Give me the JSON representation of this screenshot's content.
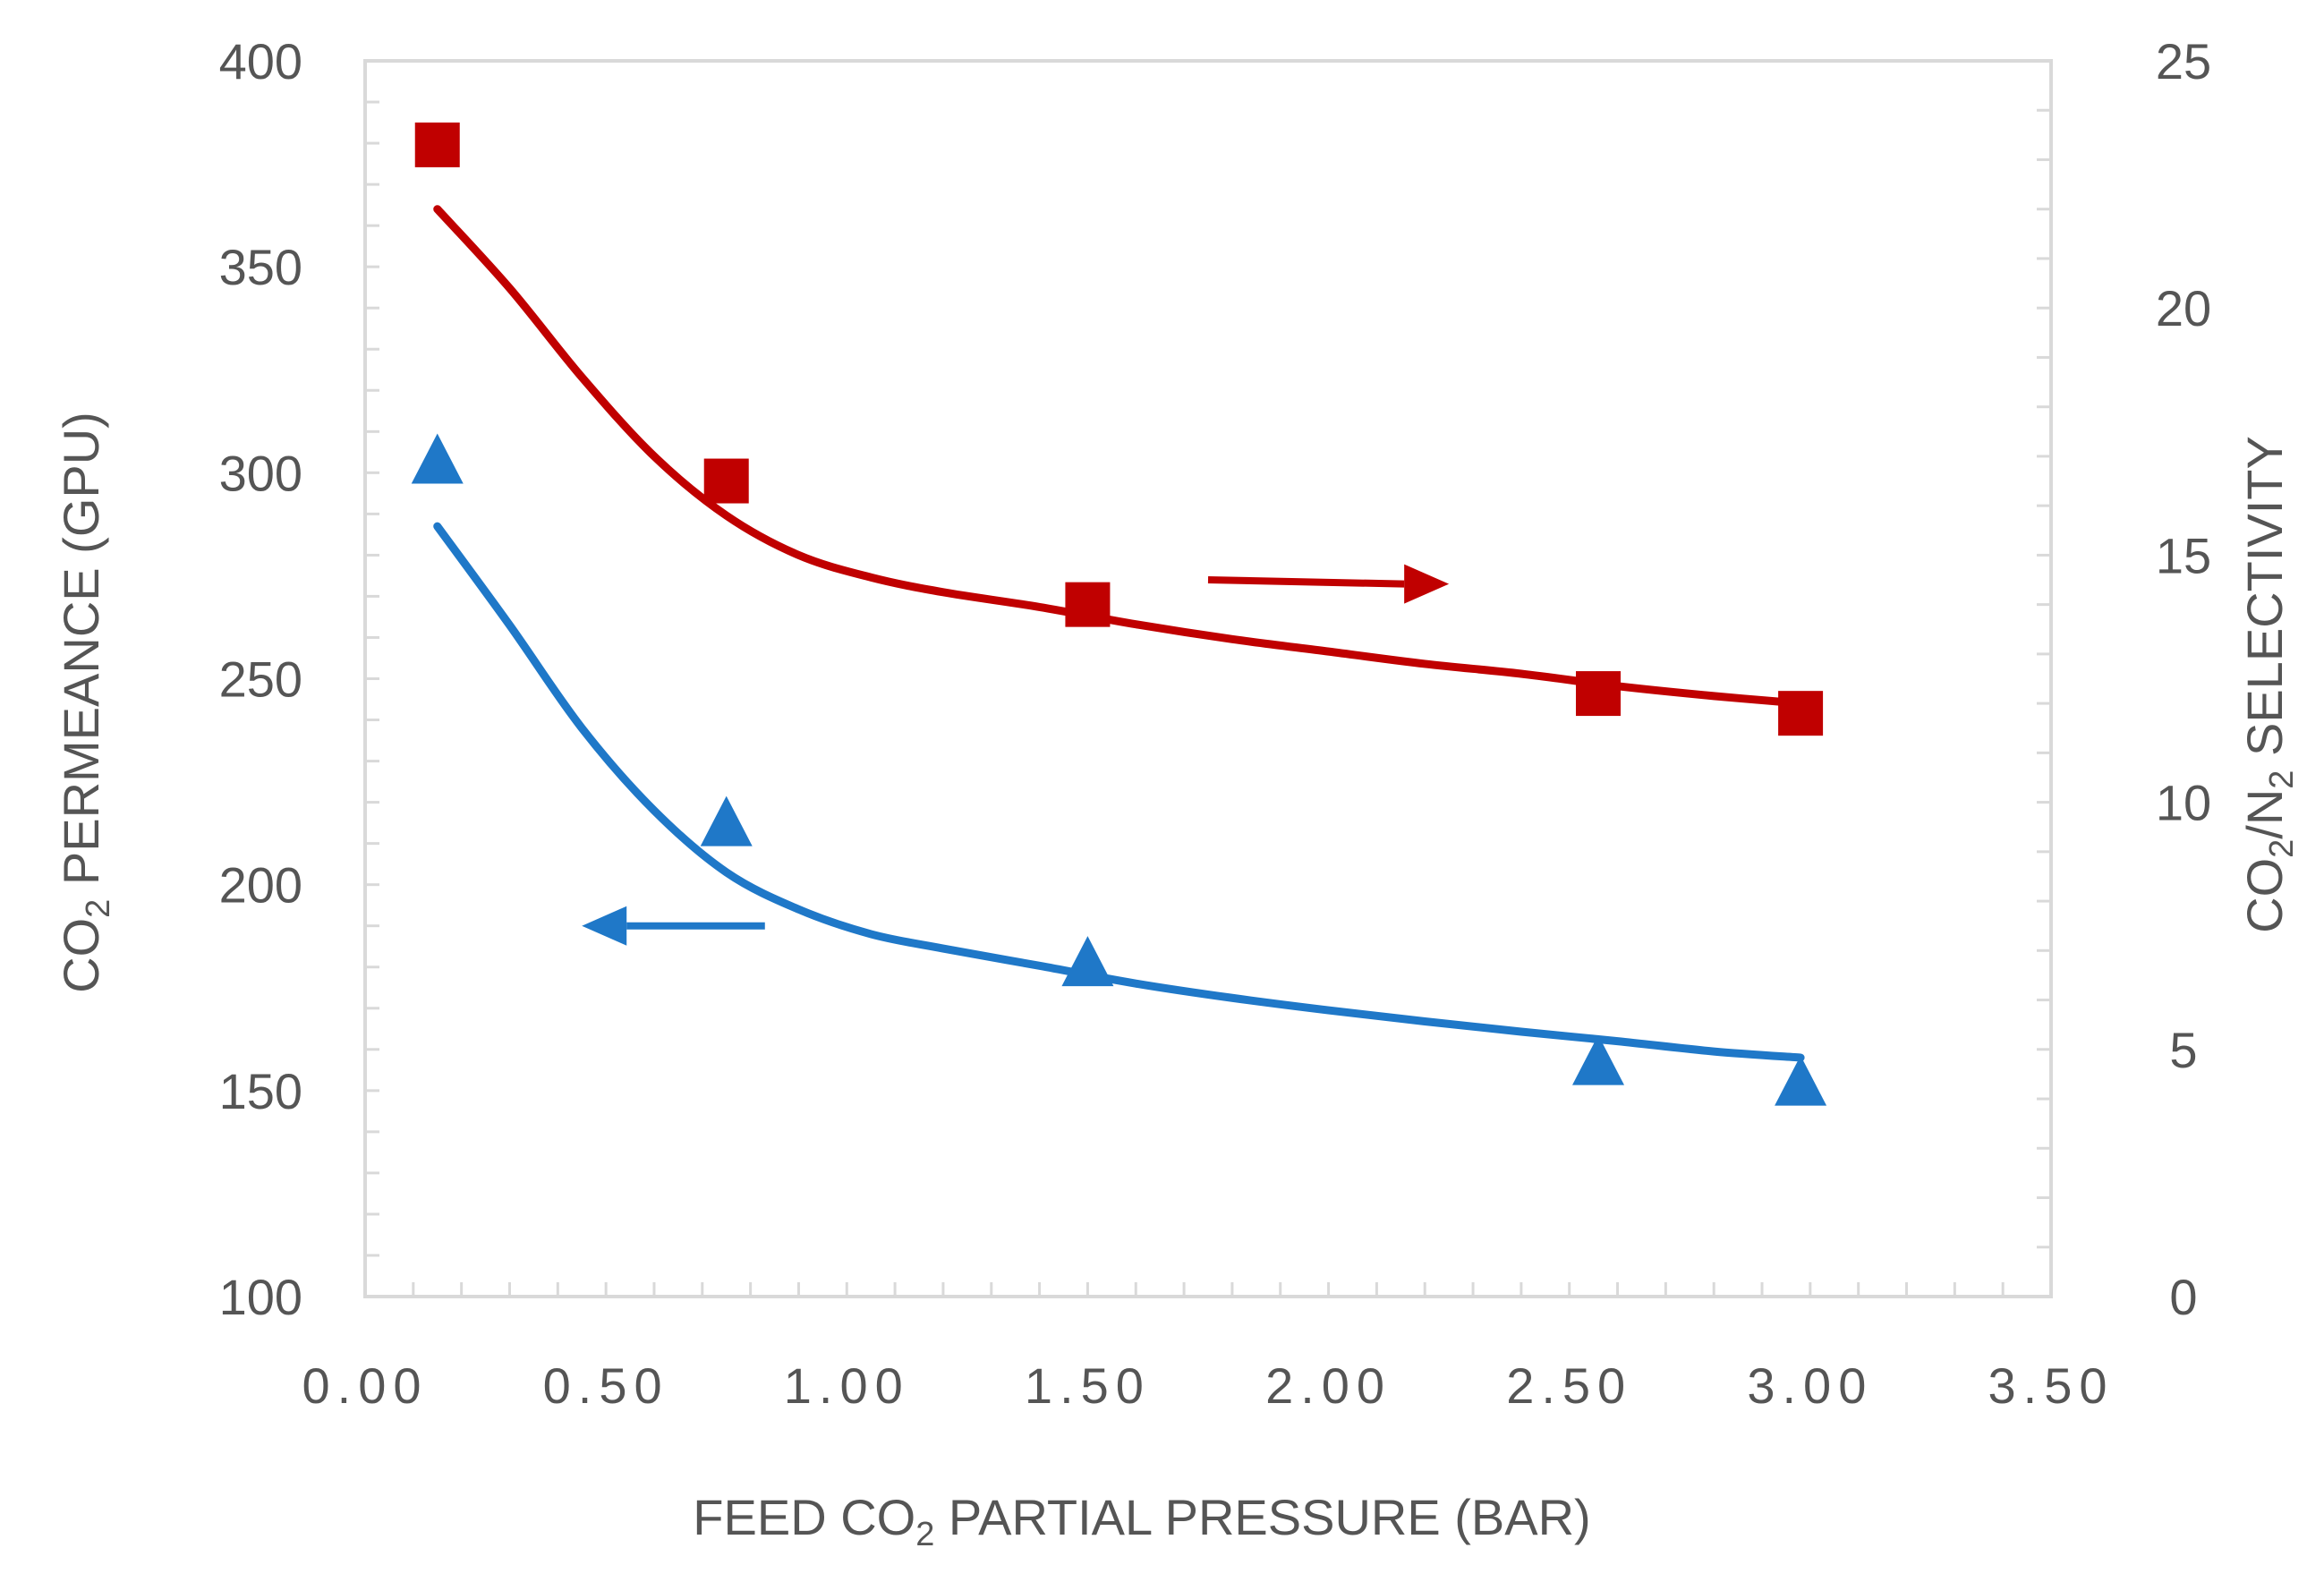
{
  "chart_data": {
    "type": "scatter",
    "title": "",
    "xlabel": {
      "pre": "FEED CO",
      "sub": "2",
      "post": " PARTIAL PRESSURE (BAR)"
    },
    "ylabel_left": {
      "pre": "CO",
      "sub": "2",
      "post": " PERMEANCE (GPU)"
    },
    "ylabel_right": {
      "pre": "CO",
      "sub1": "2",
      "mid": "/N",
      "sub2": "2",
      "post": " SELECTIVITY"
    },
    "xlim": [
      0,
      3.5
    ],
    "ylim_left": [
      100,
      400
    ],
    "ylim_right": [
      0,
      25
    ],
    "x_ticks": [
      "0.00",
      "0.50",
      "1.00",
      "1.50",
      "2.00",
      "2.50",
      "3.00",
      "3.50"
    ],
    "x_tick_values": [
      0,
      0.5,
      1.0,
      1.5,
      2.0,
      2.5,
      3.0,
      3.5
    ],
    "y_left_ticks": [
      "100",
      "150",
      "200",
      "250",
      "300",
      "350",
      "400"
    ],
    "y_left_tick_values": [
      100,
      150,
      200,
      250,
      300,
      350,
      400
    ],
    "y_right_ticks": [
      "0",
      "5",
      "10",
      "15",
      "20",
      "25"
    ],
    "y_right_tick_values": [
      0,
      5,
      10,
      15,
      20,
      25
    ],
    "grid": false,
    "series": [
      {
        "name": "CO2 permeance",
        "axis": "left",
        "marker": "triangle",
        "color": "#1f78c8",
        "x": [
          0.15,
          0.75,
          1.5,
          2.56,
          2.98
        ],
        "y": [
          303,
          215,
          181,
          157,
          152
        ],
        "fit_x": [
          0.15,
          0.3,
          0.45,
          0.6,
          0.75,
          0.9,
          1.05,
          1.2,
          1.4,
          1.6,
          1.8,
          2.0,
          2.2,
          2.4,
          2.6,
          2.8,
          2.98
        ],
        "fit_y": [
          287,
          263,
          238,
          218,
          203,
          194,
          188,
          184.5,
          180.3,
          176,
          172.5,
          169.5,
          166.8,
          164.3,
          162,
          159.5,
          158
        ]
      },
      {
        "name": "CO2/N2 selectivity",
        "axis": "right",
        "marker": "square",
        "color": "#c00000",
        "x": [
          0.15,
          0.75,
          1.5,
          2.56,
          2.98
        ],
        "y": [
          23.3,
          16.5,
          14,
          12.2,
          11.8
        ],
        "fit_x": [
          0.15,
          0.3,
          0.45,
          0.6,
          0.75,
          0.9,
          1.05,
          1.2,
          1.4,
          1.6,
          1.8,
          2.0,
          2.2,
          2.4,
          2.6,
          2.8,
          2.98
        ],
        "fit_y": [
          22,
          20.4,
          18.6,
          17,
          15.8,
          15,
          14.55,
          14.25,
          13.95,
          13.6,
          13.3,
          13.05,
          12.8,
          12.6,
          12.35,
          12.15,
          12.0
        ]
      }
    ],
    "annotations": [
      {
        "type": "arrow",
        "direction": "left",
        "points_to": "left axis",
        "color": "#1f78c8",
        "x_from": 0.83,
        "x_to": 0.45,
        "y_left": 190
      },
      {
        "type": "arrow",
        "direction": "right",
        "points_to": "right axis",
        "color": "#c00000",
        "x_from": 1.75,
        "x_to": 2.25,
        "y_left": 274,
        "y_left_end": 273
      }
    ]
  }
}
